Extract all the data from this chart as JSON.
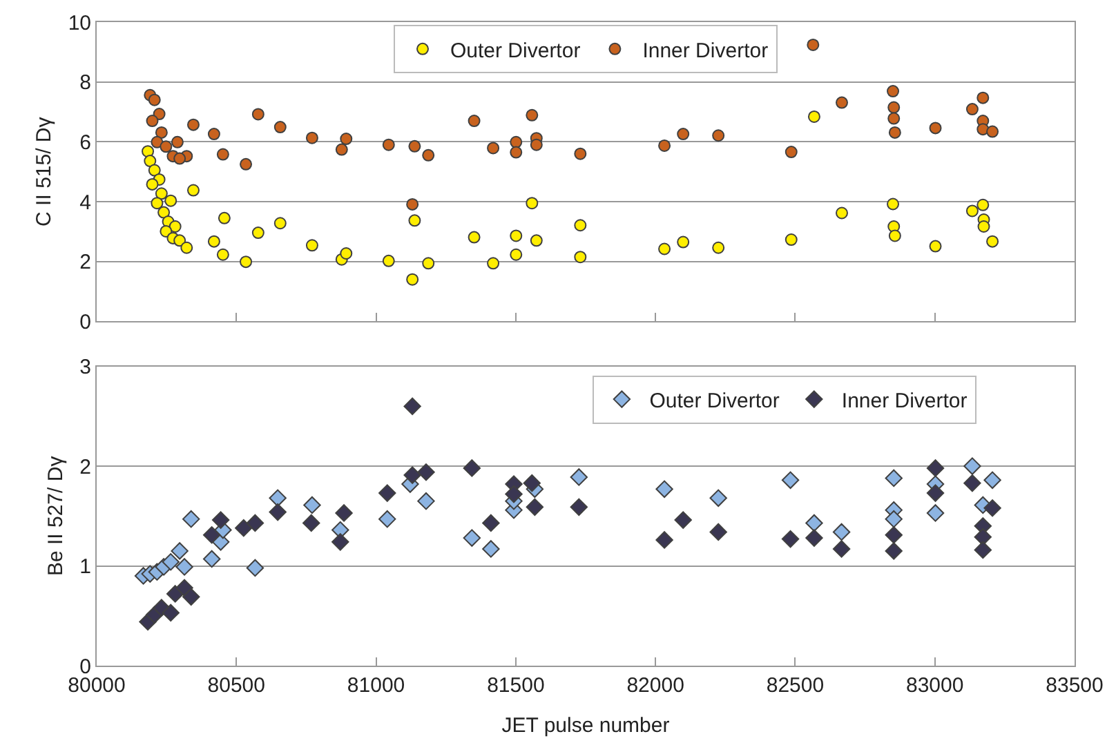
{
  "chart_data": [
    {
      "type": "scatter",
      "ylabel": "C II 515/ Dγ",
      "xlim": [
        80000,
        83500
      ],
      "xticks": [
        80000,
        80500,
        81000,
        81500,
        82000,
        82500,
        83000,
        83500
      ],
      "ylim": [
        0,
        10
      ],
      "yticks": [
        0,
        2,
        4,
        6,
        8,
        10
      ],
      "grid": "y",
      "legend": "top",
      "tick_labels": "y",
      "series": [
        {
          "name": "Outer Divertor",
          "color": "#ffee00",
          "marker": "circle",
          "x": [
            80183,
            80191,
            80207,
            80224,
            80199,
            80232,
            80216,
            80265,
            80240,
            80256,
            80281,
            80248,
            80273,
            80297,
            80322,
            80346,
            80420,
            80452,
            80457,
            80534,
            80578,
            80657,
            80771,
            80877,
            80893,
            81045,
            81130,
            81138,
            81187,
            81351,
            81419,
            81501,
            81501,
            81558,
            81574,
            81731,
            81731,
            82032,
            82099,
            82225,
            82486,
            82568,
            82667,
            82850,
            82853,
            82857,
            83002,
            83134,
            83172,
            83175,
            83175,
            83206
          ],
          "values": [
            5.68,
            5.36,
            5.05,
            4.74,
            4.58,
            4.27,
            3.95,
            4.03,
            3.64,
            3.33,
            3.17,
            3.01,
            2.78,
            2.7,
            2.46,
            4.38,
            2.67,
            2.23,
            3.45,
            1.99,
            2.96,
            3.28,
            2.54,
            2.07,
            2.27,
            2.02,
            1.4,
            3.37,
            1.94,
            2.81,
            1.94,
            2.86,
            2.23,
            3.95,
            2.7,
            3.21,
            2.15,
            2.42,
            2.65,
            2.46,
            2.73,
            6.84,
            3.62,
            3.92,
            3.17,
            2.86,
            2.51,
            3.69,
            3.89,
            3.4,
            3.17,
            2.67
          ]
        },
        {
          "name": "Inner Divertor",
          "color": "#c8621e",
          "marker": "circle",
          "x": [
            80191,
            80207,
            80224,
            80199,
            80232,
            80216,
            80248,
            80289,
            80273,
            80322,
            80297,
            80346,
            80420,
            80452,
            80534,
            80578,
            80657,
            80771,
            80877,
            80893,
            81045,
            81138,
            81130,
            81187,
            81351,
            81419,
            81501,
            81501,
            81558,
            81574,
            81574,
            81731,
            82032,
            82099,
            82225,
            82486,
            82564,
            82667,
            82850,
            82853,
            82853,
            82857,
            83002,
            83134,
            83172,
            83172,
            83172,
            83206
          ],
          "values": [
            7.56,
            7.4,
            6.93,
            6.7,
            6.31,
            5.99,
            5.84,
            5.99,
            5.52,
            5.52,
            5.44,
            6.57,
            6.26,
            5.58,
            5.25,
            6.92,
            6.49,
            6.13,
            5.74,
            6.1,
            5.9,
            5.85,
            3.91,
            5.55,
            6.7,
            5.79,
            5.99,
            5.65,
            6.89,
            6.12,
            5.9,
            5.6,
            5.87,
            6.26,
            6.21,
            5.66,
            9.24,
            7.31,
            7.69,
            7.15,
            6.78,
            6.31,
            6.46,
            7.09,
            7.47,
            6.7,
            6.42,
            6.34
          ]
        }
      ]
    },
    {
      "type": "scatter",
      "ylabel": "Be II 527/ Dγ",
      "xlabel": "JET pulse number",
      "xlim": [
        80000,
        83500
      ],
      "xticks": [
        80000,
        80500,
        81000,
        81500,
        82000,
        82500,
        83000,
        83500
      ],
      "ylim": [
        0,
        3
      ],
      "yticks": [
        0,
        1,
        2,
        3
      ],
      "grid": "y",
      "legend": "top right",
      "series": [
        {
          "name": "Outer Divertor",
          "color": "#8db4e2",
          "marker": "diamond",
          "x": [
            80167,
            80191,
            80216,
            80240,
            80265,
            80297,
            80314,
            80338,
            80412,
            80444,
            80452,
            80567,
            80648,
            80771,
            80872,
            81040,
            81122,
            81179,
            81343,
            81411,
            81493,
            81493,
            81568,
            81726,
            82032,
            82225,
            82483,
            82568,
            82666,
            82853,
            82853,
            82853,
            83002,
            83002,
            83134,
            83172,
            83206
          ],
          "values": [
            0.9,
            0.92,
            0.94,
            0.99,
            1.04,
            1.15,
            0.99,
            1.47,
            1.07,
            1.24,
            1.36,
            0.98,
            1.68,
            1.61,
            1.36,
            1.47,
            1.82,
            1.65,
            1.28,
            1.17,
            1.56,
            1.65,
            1.77,
            1.89,
            1.77,
            1.68,
            1.86,
            1.43,
            1.34,
            1.88,
            1.56,
            1.47,
            1.82,
            1.53,
            2.0,
            1.61,
            1.86
          ]
        },
        {
          "name": "Inner Divertor",
          "color": "#3a3652",
          "marker": "diamond",
          "x": [
            80183,
            80207,
            80232,
            80265,
            80281,
            80314,
            80338,
            80412,
            80444,
            80526,
            80567,
            80648,
            80768,
            80872,
            80885,
            81040,
            81130,
            81130,
            81179,
            81343,
            81411,
            81493,
            81493,
            81558,
            81568,
            81726,
            82032,
            82099,
            82225,
            82483,
            82568,
            82666,
            82853,
            82853,
            83002,
            83002,
            83134,
            83172,
            83172,
            83172,
            83206
          ],
          "values": [
            0.44,
            0.51,
            0.58,
            0.53,
            0.72,
            0.78,
            0.69,
            1.31,
            1.46,
            1.38,
            1.43,
            1.54,
            1.43,
            1.24,
            1.53,
            1.73,
            2.6,
            1.91,
            1.94,
            1.98,
            1.43,
            1.82,
            1.72,
            1.83,
            1.59,
            1.59,
            1.26,
            1.46,
            1.34,
            1.27,
            1.28,
            1.17,
            1.31,
            1.15,
            1.98,
            1.73,
            1.83,
            1.4,
            1.29,
            1.16,
            1.58
          ]
        }
      ]
    }
  ]
}
